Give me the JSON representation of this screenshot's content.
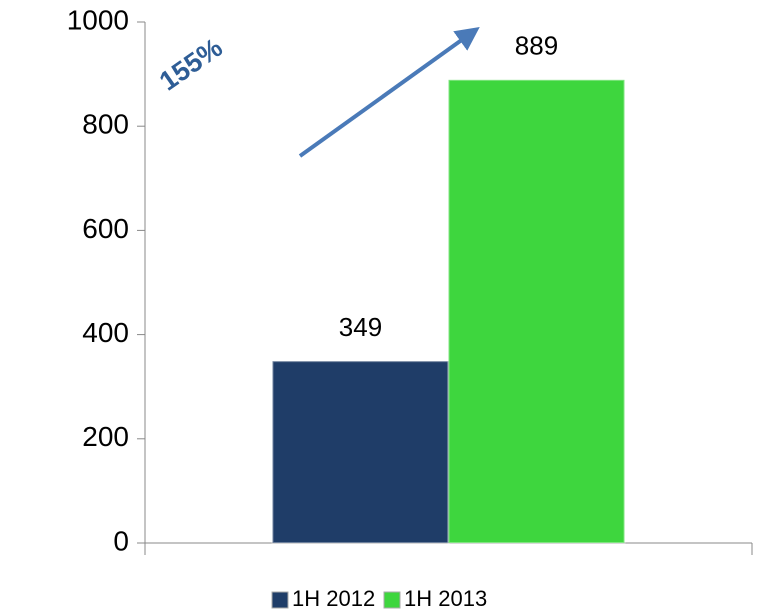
{
  "chart_data": {
    "type": "bar",
    "categories": [
      null
    ],
    "series": [
      {
        "name": "1H 2012",
        "color": "#1f3d68",
        "values": [
          349
        ]
      },
      {
        "name": "1H 2013",
        "color": "#3ed63e",
        "values": [
          889
        ]
      }
    ],
    "ylim": [
      0,
      1000
    ],
    "yticks": [
      0,
      200,
      400,
      600,
      800,
      1000
    ],
    "grid": false,
    "legend": "bottom",
    "annotation": "155%"
  }
}
